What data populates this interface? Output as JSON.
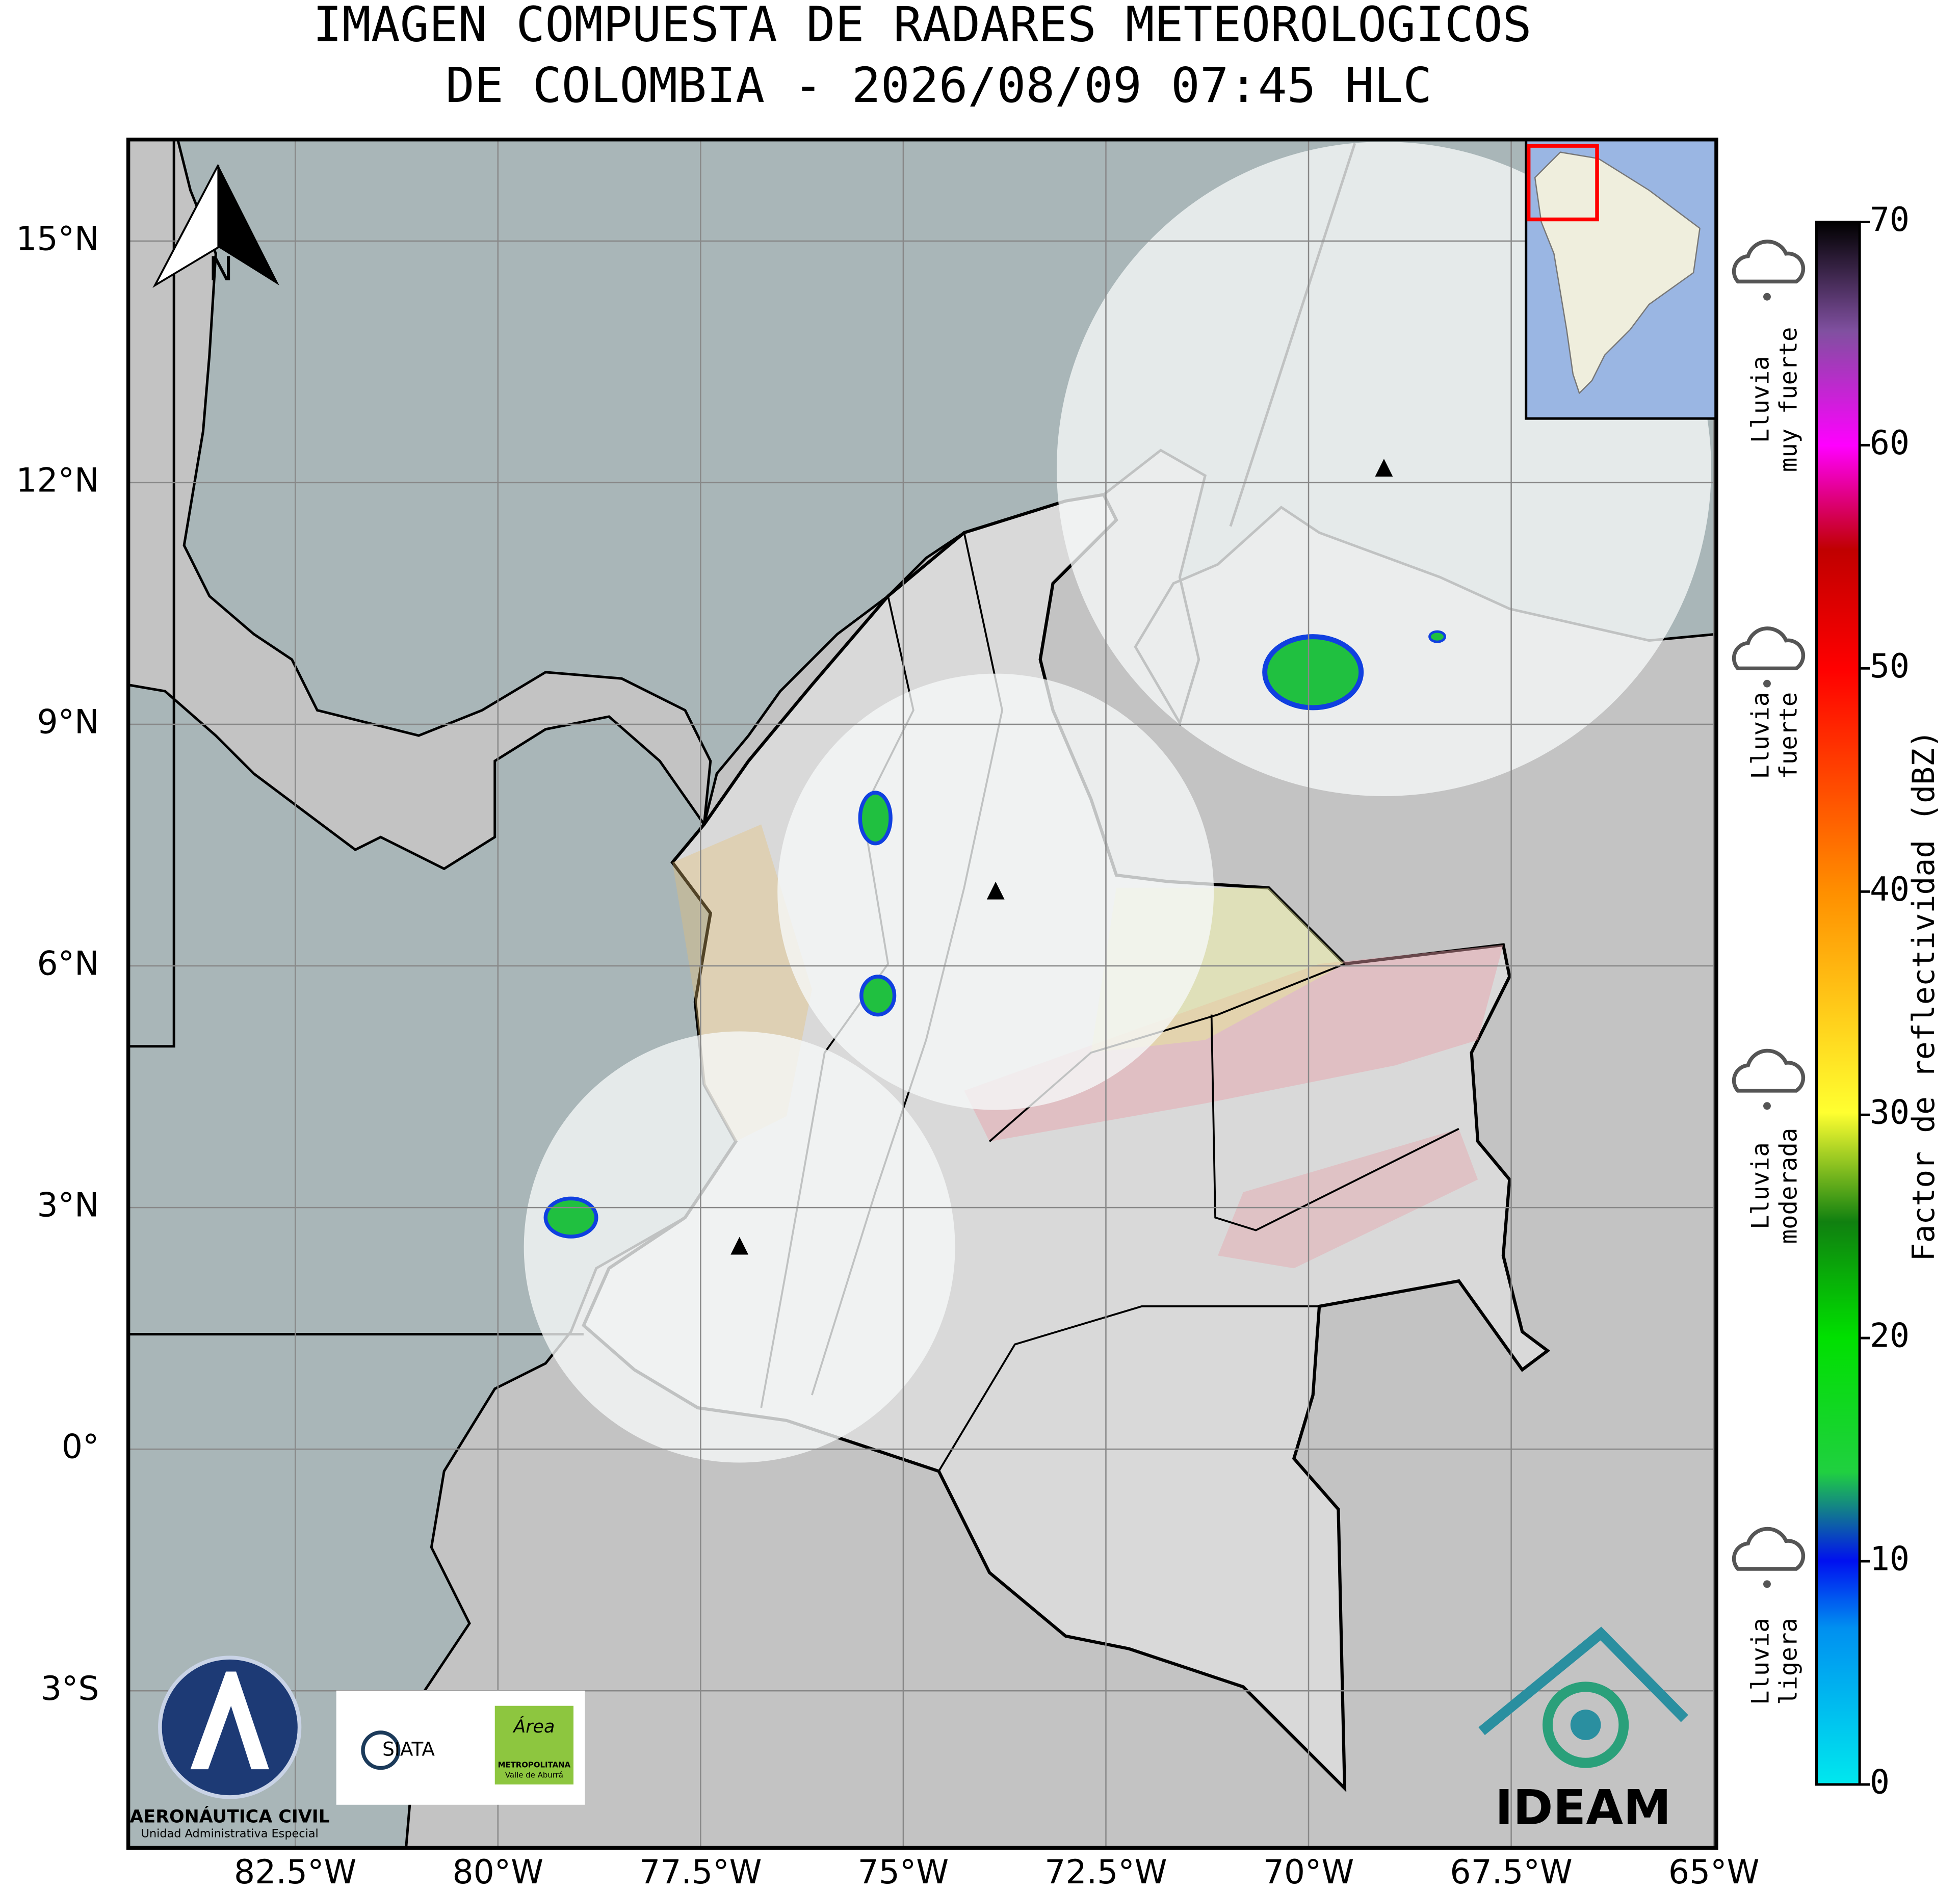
{
  "title": [
    "IMAGEN COMPUESTA DE RADARES METEOROLOGICOS",
    "DE COLOMBIA - 2026/08/09 07:45 HLC"
  ],
  "map": {
    "xlim": [
      -84.56,
      -64.97
    ],
    "ylim": [
      -4.95,
      16.26
    ],
    "xticks": [
      {
        "value": -82.5,
        "label": "82.5°W"
      },
      {
        "value": -80,
        "label": "80°W"
      },
      {
        "value": -77.5,
        "label": "77.5°W"
      },
      {
        "value": -75,
        "label": "75°W"
      },
      {
        "value": -72.5,
        "label": "72.5°W"
      },
      {
        "value": -70,
        "label": "70°W"
      },
      {
        "value": -67.5,
        "label": "67.5°W"
      },
      {
        "value": -65,
        "label": "65°W"
      }
    ],
    "yticks": [
      {
        "value": -3,
        "label": "3°S"
      },
      {
        "value": 0,
        "label": "0°"
      },
      {
        "value": 3,
        "label": "3°N"
      },
      {
        "value": 6,
        "label": "6°N"
      },
      {
        "value": 9,
        "label": "9°N"
      },
      {
        "value": 12,
        "label": "12°N"
      },
      {
        "value": 15,
        "label": "15°N"
      }
    ],
    "grid": true,
    "radars": [
      {
        "lon": -77.02,
        "lat": 2.51
      },
      {
        "lon": -73.86,
        "lat": 6.92
      },
      {
        "lon": -69.07,
        "lat": 12.17
      }
    ]
  },
  "north_arrow": "N",
  "colorbar": {
    "label": "Factor de reflectividad (dBZ)",
    "lim": [
      0,
      70
    ],
    "ticks": [
      0,
      10,
      20,
      30,
      40,
      50,
      60,
      70
    ]
  },
  "rain_levels": [
    {
      "lines": [
        "Lluvia",
        "muy fuerte"
      ]
    },
    {
      "lines": [
        "Lluvia",
        "fuerte"
      ]
    },
    {
      "lines": [
        "Lluvia",
        "moderada"
      ]
    },
    {
      "lines": [
        "Lluvia",
        "ligera"
      ]
    }
  ],
  "logos": {
    "aerocivil": [
      "AERONÁUTICA CIVIL",
      "Unidad Administrativa Especial"
    ],
    "siata": "SIATA",
    "area": [
      "Área",
      "METROPOLITANA",
      "Valle de Aburrá"
    ],
    "ideam": "IDEAM"
  }
}
